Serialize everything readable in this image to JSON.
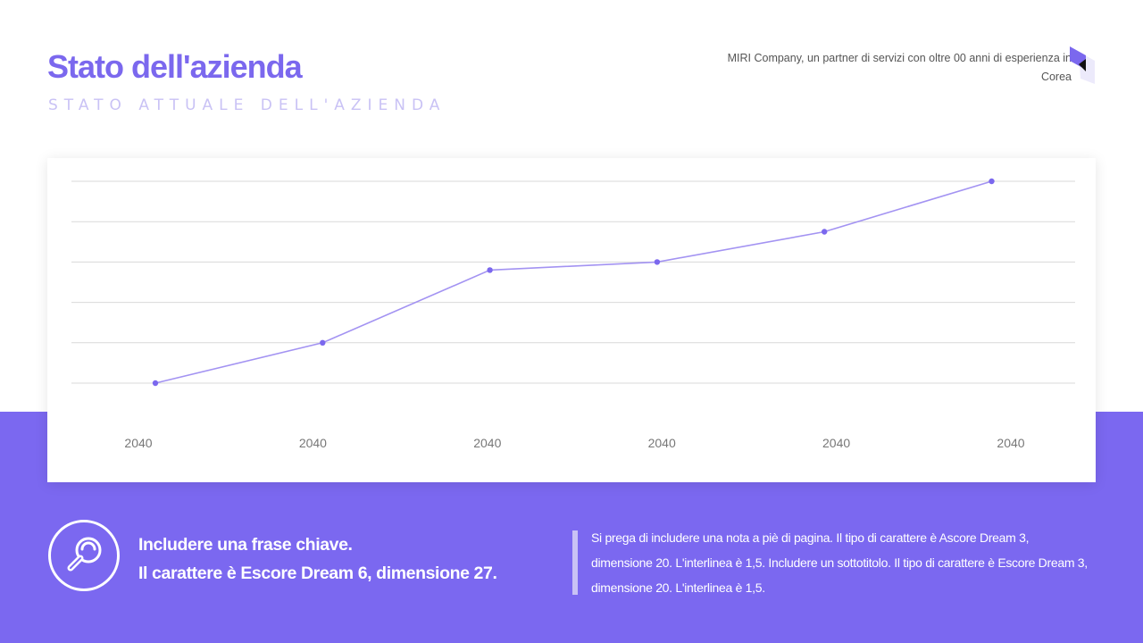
{
  "header": {
    "title": "Stato dell'azienda",
    "subtitle": "STATO ATTUALE DELL'AZIENDA",
    "tagline": "MIRI Company, un partner di servizi con oltre 00 anni di esperienza in Corea"
  },
  "colors": {
    "accent": "#7B68EE",
    "band": "#7B68F0",
    "line": "#A393F2",
    "point": "#7B68EE",
    "grid": "#D9D9D9"
  },
  "chart_data": {
    "type": "line",
    "categories": [
      "2040",
      "2040",
      "2040",
      "2040",
      "2040",
      "2040"
    ],
    "series": [
      {
        "values": [
          0,
          1,
          2.8,
          3,
          3.75,
          5
        ]
      }
    ],
    "ylim": [
      0,
      5
    ],
    "y_ticks_shown": false,
    "grid": true,
    "legend": "none"
  },
  "footer": {
    "icon": "search-icon",
    "key_line1": "Includere una frase chiave.",
    "key_line2": "Il carattere è Escore Dream 6, dimensione 27.",
    "note": "Si prega di includere una nota a piè di pagina. Il tipo di carattere è Ascore Dream 3, dimensione 20. L'interlinea è 1,5. Includere un sottotitolo. Il tipo di carattere è Escore Dream 3, dimensione 20. L'interlinea è 1,5."
  }
}
